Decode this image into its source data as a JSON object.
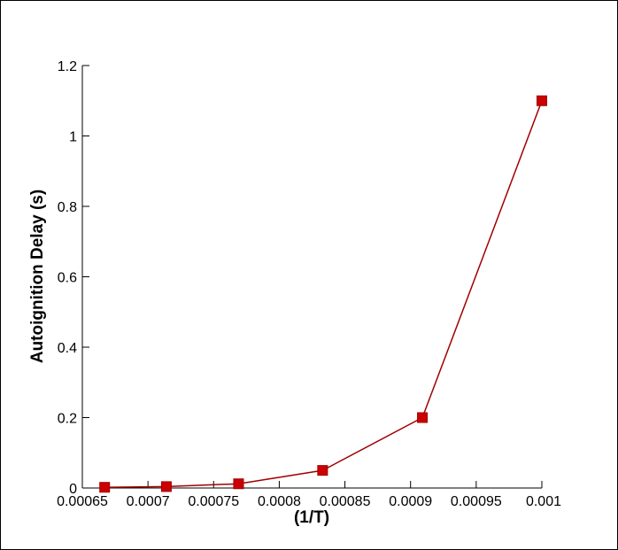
{
  "chart_data": {
    "type": "line",
    "xlabel": "(1/T)",
    "ylabel": "Autoignition Delay (s)",
    "x": [
      0.000667,
      0.000714,
      0.000769,
      0.000833,
      0.000909,
      0.001
    ],
    "series": [
      {
        "name": "Autoignition Delay",
        "color": "#cc0000",
        "line_color": "#a00000",
        "values": [
          0.002,
          0.004,
          0.012,
          0.05,
          0.2,
          1.1
        ]
      }
    ],
    "xlim": [
      0.00065,
      0.001
    ],
    "xticks": [
      0.00065,
      0.0007,
      0.00075,
      0.0008,
      0.00085,
      0.0009,
      0.00095,
      0.001
    ],
    "ylim": [
      0,
      1.2
    ],
    "yticks": [
      0,
      0.2,
      0.4,
      0.6,
      0.8,
      1,
      1.2
    ]
  }
}
